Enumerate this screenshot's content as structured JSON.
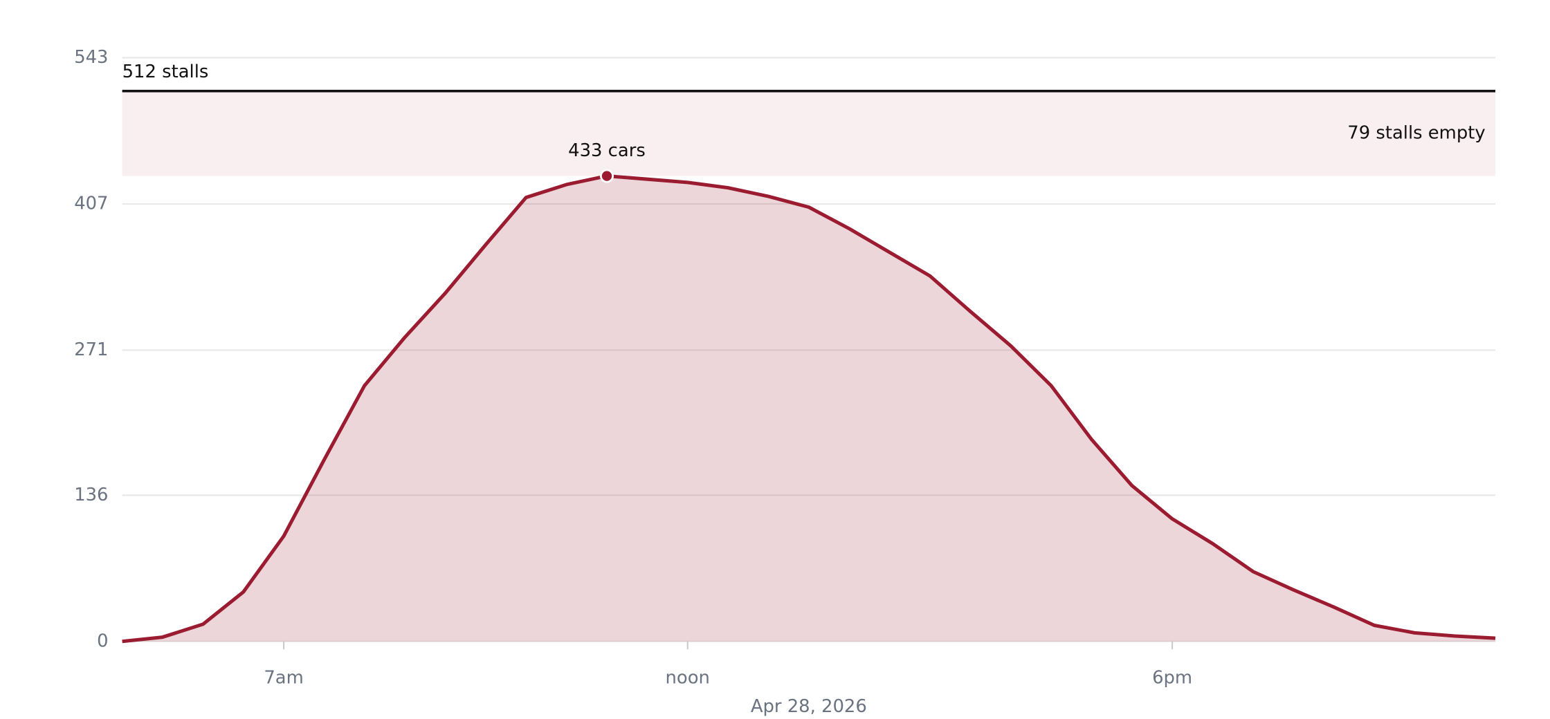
{
  "chart_data": {
    "type": "area",
    "xlabel": "Apr 28, 2026",
    "x": [
      5,
      5.5,
      6,
      6.5,
      7,
      7.5,
      8,
      8.5,
      9,
      9.5,
      10,
      10.5,
      11,
      11.5,
      12,
      12.5,
      13,
      13.5,
      14,
      14.5,
      15,
      15.5,
      16,
      16.5,
      17,
      17.5,
      18,
      18.5,
      19,
      19.5,
      20,
      20.5,
      21,
      21.5,
      22
    ],
    "series": [
      {
        "name": "cars",
        "color": "#9b1b30",
        "values": [
          0,
          4,
          16,
          46,
          98,
          169,
          238,
          283,
          324,
          369,
          413,
          425,
          433,
          430,
          427,
          422,
          414,
          404,
          384,
          362,
          340,
          307,
          275,
          238,
          188,
          145,
          114,
          91,
          65,
          48,
          32,
          15,
          8,
          5,
          3
        ]
      }
    ],
    "xlim": [
      5,
      22
    ],
    "xticks": [
      {
        "value": 7,
        "label": "7am"
      },
      {
        "value": 12,
        "label": "noon"
      },
      {
        "value": 18,
        "label": "6pm"
      }
    ],
    "ylim": [
      0,
      543
    ],
    "yticks": [
      0,
      136,
      271,
      407,
      543
    ],
    "grid": true,
    "capacity": {
      "value": 512,
      "label": "512 stalls"
    },
    "empty": {
      "value": 79,
      "label": "79 stalls empty"
    },
    "peak_label": "433 cars"
  }
}
